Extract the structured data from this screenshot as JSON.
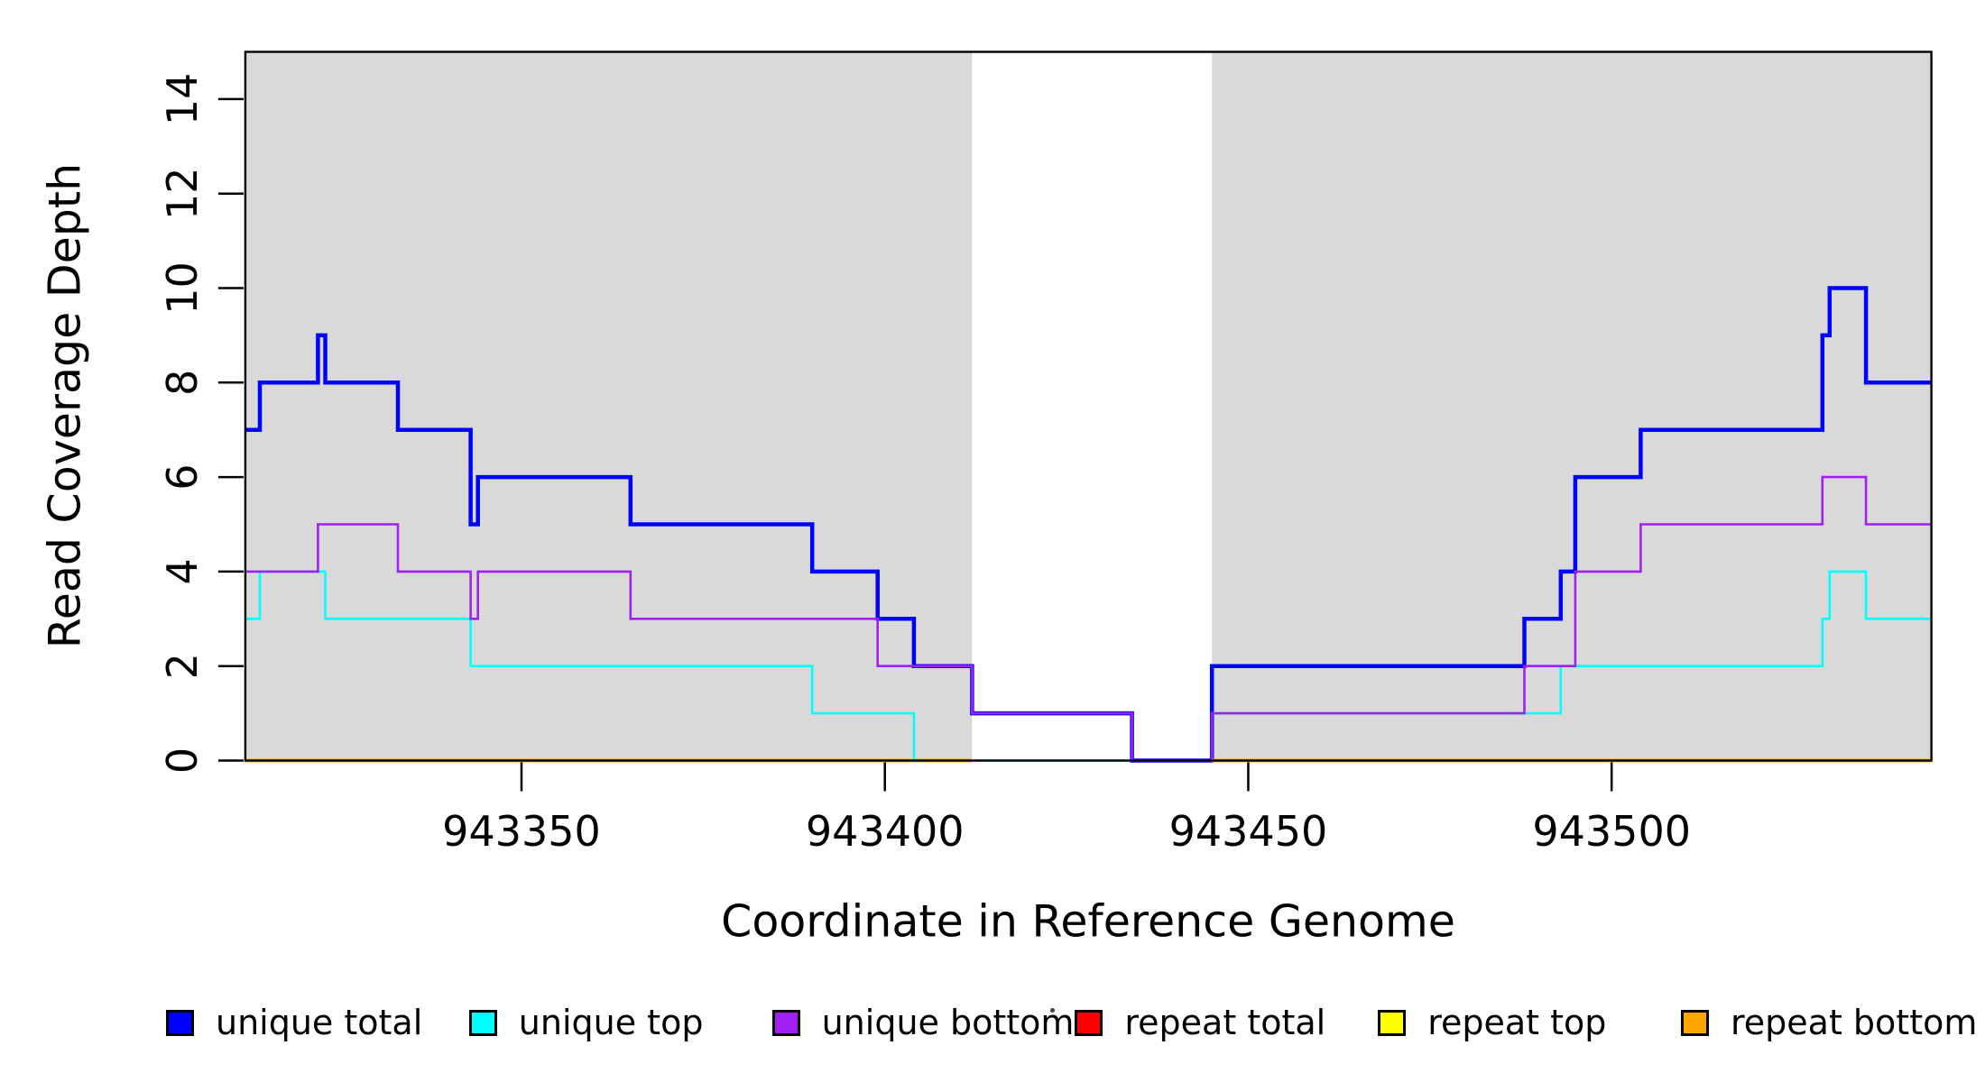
{
  "figure": {
    "background_color": "#ffffff",
    "shaded_region_color": "#d9d9d9",
    "axis_color": "#000000"
  },
  "chart_data": {
    "type": "line",
    "subtype": "step-coverage",
    "title": "",
    "xlabel": "Coordinate in Reference Genome",
    "ylabel": "Read Coverage Depth",
    "xlim": [
      943312,
      943544
    ],
    "ylim": [
      0,
      15
    ],
    "xticks": [
      943350,
      943400,
      943450,
      943500
    ],
    "yticks": [
      0,
      2,
      4,
      6,
      8,
      10,
      12,
      14
    ],
    "grid": false,
    "legend_position": "bottom",
    "shaded_regions": [
      {
        "name": "left-gray-region",
        "x0": 943312,
        "x1": 943412
      },
      {
        "name": "right-gray-region",
        "x0": 943445,
        "x1": 943544
      }
    ],
    "series": [
      {
        "name": "unique total",
        "color": "#0000ff",
        "line_width": 4.5,
        "segments": [
          [
            [
              943312,
              7
            ],
            [
              943314,
              8
            ],
            [
              943322,
              9
            ],
            [
              943323,
              8
            ],
            [
              943333,
              7
            ],
            [
              943343,
              5
            ],
            [
              943344,
              6
            ],
            [
              943365,
              5
            ],
            [
              943390,
              4
            ],
            [
              943399,
              3
            ],
            [
              943404,
              2
            ],
            [
              943412,
              1
            ],
            [
              943434,
              0
            ],
            [
              943445,
              2
            ],
            [
              943488,
              3
            ],
            [
              943493,
              4
            ],
            [
              943495,
              6
            ],
            [
              943504,
              7
            ],
            [
              943529,
              9
            ],
            [
              943530,
              10
            ],
            [
              943535,
              8
            ],
            [
              943544,
              8
            ]
          ]
        ]
      },
      {
        "name": "unique top",
        "color": "#00ffff",
        "line_width": 2.6,
        "segments": [
          [
            [
              943312,
              3
            ],
            [
              943314,
              4
            ],
            [
              943323,
              3
            ],
            [
              943343,
              2
            ],
            [
              943390,
              1
            ],
            [
              943404,
              0
            ],
            [
              943445,
              1
            ],
            [
              943493,
              2
            ],
            [
              943529,
              3
            ],
            [
              943530,
              4
            ],
            [
              943535,
              3
            ],
            [
              943544,
              3
            ]
          ]
        ]
      },
      {
        "name": "unique bottom",
        "color": "#a020f0",
        "line_width": 2.6,
        "segments": [
          [
            [
              943312,
              4
            ],
            [
              943322,
              5
            ],
            [
              943333,
              4
            ],
            [
              943343,
              3
            ],
            [
              943344,
              4
            ],
            [
              943365,
              3
            ],
            [
              943399,
              2
            ],
            [
              943412,
              1
            ],
            [
              943434,
              0
            ],
            [
              943445,
              1
            ],
            [
              943488,
              2
            ],
            [
              943495,
              4
            ],
            [
              943504,
              5
            ],
            [
              943529,
              6
            ],
            [
              943535,
              5
            ],
            [
              943544,
              5
            ]
          ]
        ]
      },
      {
        "name": "repeat total",
        "color": "#ff0000",
        "line_width": 3.5,
        "segments": [
          [
            [
              943312,
              0
            ],
            [
              943412,
              0
            ]
          ],
          [
            [
              943445,
              0
            ],
            [
              943544,
              0
            ]
          ]
        ]
      },
      {
        "name": "repeat top",
        "color": "#ffff00",
        "line_width": 3.5,
        "segments": [
          [
            [
              943312,
              0
            ],
            [
              943412,
              0
            ]
          ],
          [
            [
              943445,
              0
            ],
            [
              943544,
              0
            ]
          ]
        ]
      },
      {
        "name": "repeat bottom",
        "color": "#ffa500",
        "line_width": 4,
        "segments": [
          [
            [
              943312,
              0
            ],
            [
              943412,
              0
            ]
          ],
          [
            [
              943445,
              0
            ],
            [
              943544,
              0
            ]
          ]
        ]
      }
    ],
    "draw_order": [
      {
        "series": "repeat total",
        "segment": 0
      },
      {
        "series": "repeat total",
        "segment": 1
      },
      {
        "series": "repeat top",
        "segment": 0
      },
      {
        "series": "repeat top",
        "segment": 1
      },
      {
        "series": "repeat bottom",
        "segment": 0
      },
      {
        "series": "unique total",
        "segment": 0
      },
      {
        "series": "unique top",
        "segment": 0
      },
      {
        "series": "unique bottom",
        "segment": 0
      },
      {
        "series": "repeat bottom",
        "segment": 1
      }
    ]
  },
  "legend": {
    "items": [
      {
        "label": "unique total",
        "color": "#0000ff"
      },
      {
        "label": "unique top",
        "color": "#00ffff"
      },
      {
        "label": "unique bottom",
        "color": "#a020f0"
      },
      {
        "label": "repeat total",
        "color": "#ff0000"
      },
      {
        "label": "repeat top",
        "color": "#ffff00"
      },
      {
        "label": "repeat bottom",
        "color": "#ffa500"
      }
    ]
  },
  "annotations": {
    "stray_mark_present": true
  }
}
